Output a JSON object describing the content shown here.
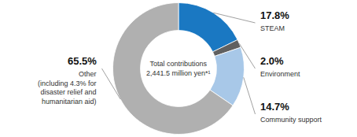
{
  "chart_data": {
    "type": "pie",
    "categories": [
      "STEAM",
      "Environment",
      "Community support",
      "Other"
    ],
    "values": [
      17.8,
      2.0,
      14.7,
      65.5
    ],
    "value_labels": [
      "17.8%",
      "2.0%",
      "14.7%",
      "65.5%"
    ],
    "data_labels": true,
    "colors": [
      "#1a78c2",
      "#606060",
      "#a8c8e8",
      "#b0b0b0"
    ],
    "center_text": "Total contributions\n2,441.5 million yen*¹",
    "annotations": [
      {
        "category": "Other",
        "text": "(including 4.3% for\ndisaster relief and\nhumanitarian aid)"
      }
    ]
  }
}
